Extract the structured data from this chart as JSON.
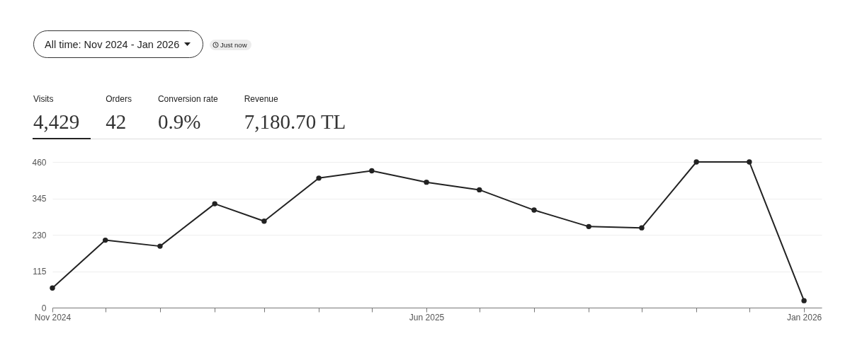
{
  "chart_data": {
    "type": "line",
    "annotations": [
      "All time: Nov 2024 - Jan 2026",
      "Just now",
      "Visits",
      "4,429",
      "Orders",
      "42",
      "Conversion rate",
      "0.9%",
      "Revenue",
      "7,180.70 TL"
    ],
    "x": [
      "2024-11",
      "2024-12",
      "2025-01",
      "2025-02",
      "2025-03",
      "2025-04",
      "2025-05",
      "2025-06",
      "2025-07",
      "2025-08",
      "2025-09",
      "2025-10",
      "2025-11",
      "2025-12",
      "2026-01"
    ],
    "values": [
      62,
      213,
      194,
      328,
      273,
      409,
      432,
      396,
      372,
      308,
      256,
      252,
      460,
      460,
      22
    ],
    "color": "#222222",
    "xlim": [
      "2024-11",
      "2026-01-11"
    ],
    "xticks": [
      {
        "value": "2024-11",
        "label": "Nov 2024"
      },
      {
        "value": "2024-12",
        "label": null
      },
      {
        "value": "2025-01",
        "label": null
      },
      {
        "value": "2025-02",
        "label": null
      },
      {
        "value": "2025-03",
        "label": null
      },
      {
        "value": "2025-04",
        "label": null
      },
      {
        "value": "2025-05",
        "label": null
      },
      {
        "value": "2025-06",
        "label": "Jun 2025"
      },
      {
        "value": "2025-07",
        "label": null
      },
      {
        "value": "2025-08",
        "label": null
      },
      {
        "value": "2025-09",
        "label": null
      },
      {
        "value": "2025-10",
        "label": null
      },
      {
        "value": "2025-11",
        "label": null
      },
      {
        "value": "2025-12",
        "label": null
      },
      {
        "value": "2026-01",
        "label": "Jan 2026"
      }
    ],
    "ylim": [
      0,
      460
    ],
    "yticks": [
      0,
      115,
      230,
      345,
      460
    ],
    "grid": "y",
    "marker": "circle"
  }
}
